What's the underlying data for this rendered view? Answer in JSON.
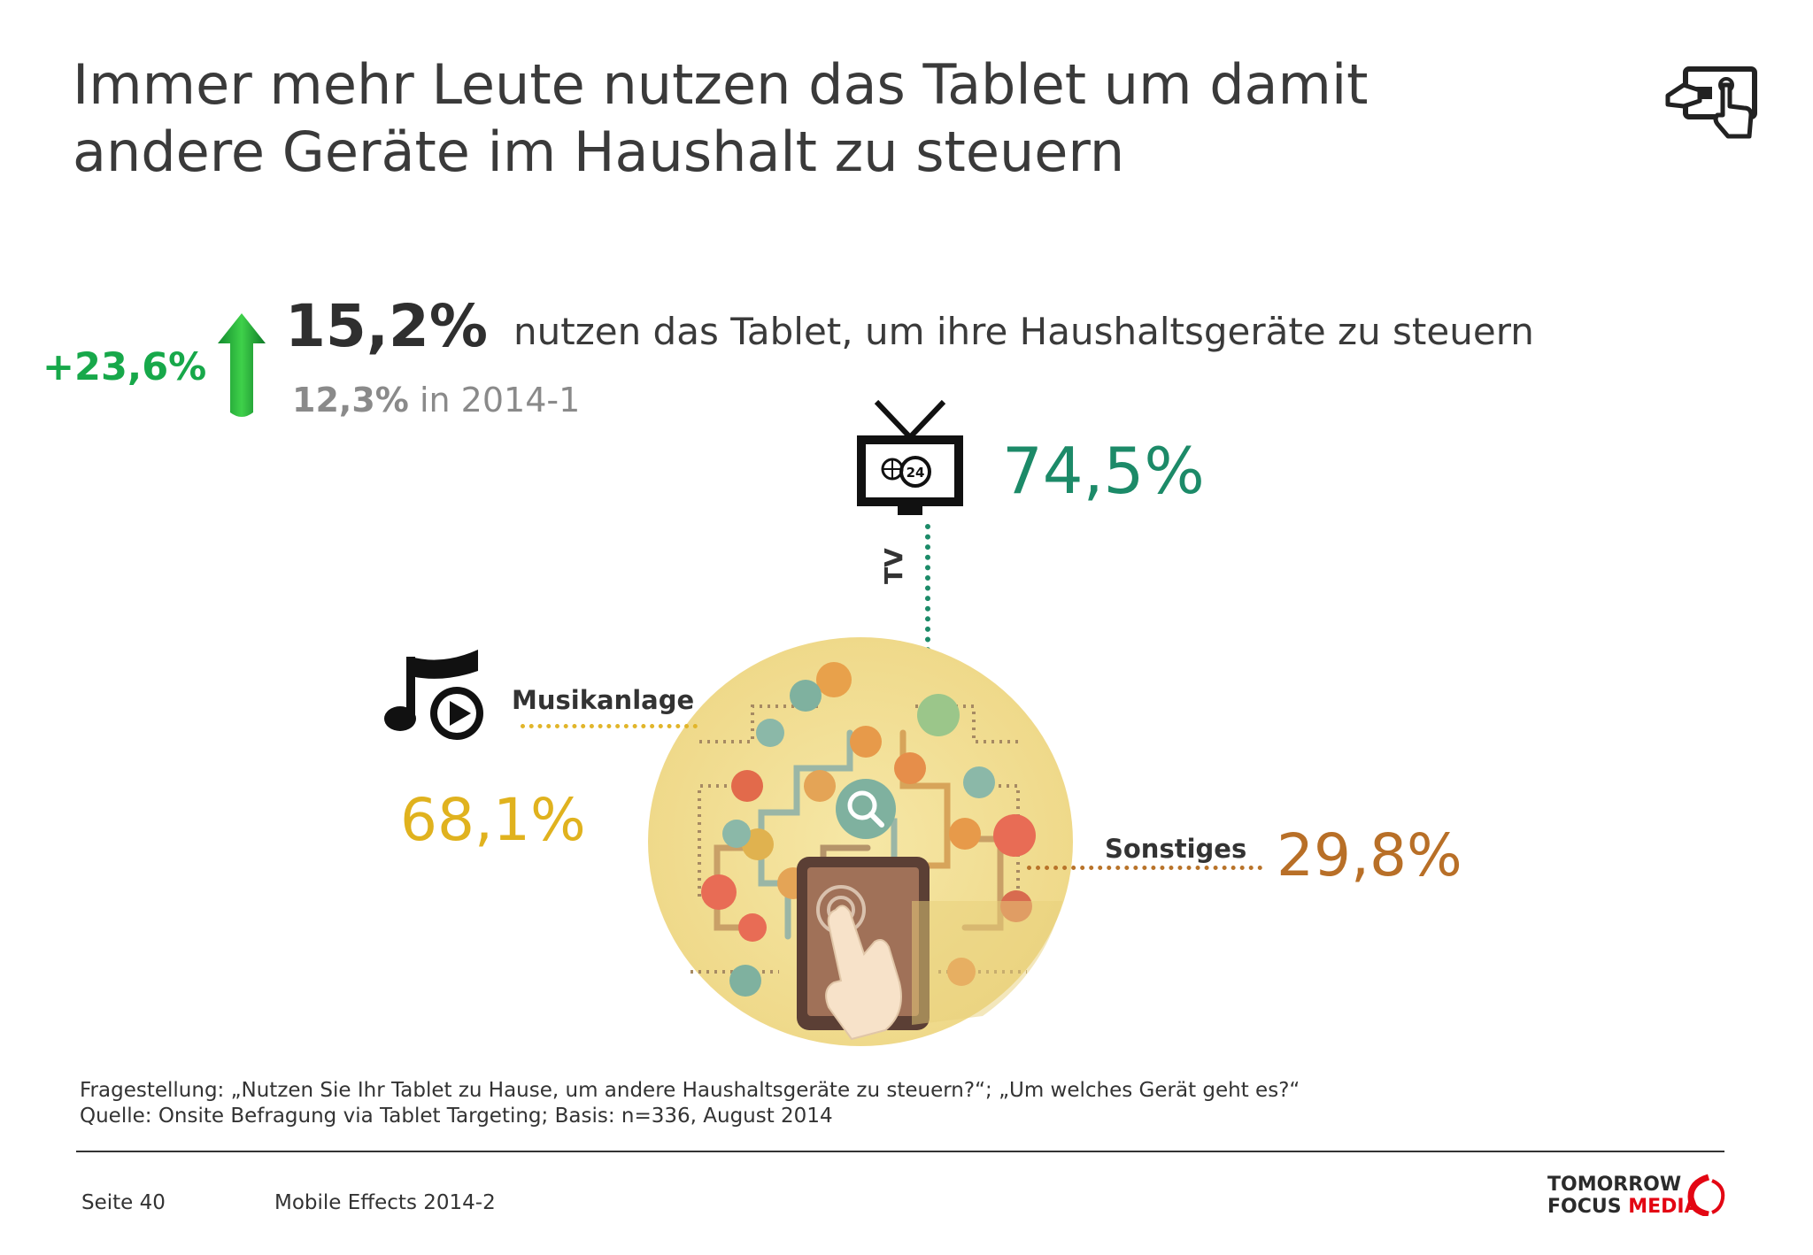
{
  "title": {
    "line1": "Immer mehr Leute nutzen das Tablet um damit",
    "line2": "andere Geräte im Haushalt zu steuern"
  },
  "headline": {
    "growth": "+23,6%",
    "value": "15,2%",
    "text": "nutzen das Tablet, um ihre Haushaltsgeräte zu steuern",
    "previous_value": "12,3%",
    "previous_label": "in 2014-1"
  },
  "devices": {
    "tv": {
      "label": "TV",
      "percent": "74,5%",
      "tv_badge": "24"
    },
    "music": {
      "label": "Musikanlage",
      "percent": "68,1%"
    },
    "other": {
      "label": "Sonstiges",
      "percent": "29,8%"
    }
  },
  "footnote": {
    "question": "Fragestellung: „Nutzen Sie Ihr Tablet zu Hause, um andere Haushaltsgeräte zu steuern?“; „Um welches Gerät geht es?“",
    "source": "Quelle: Onsite Befragung via Tablet Targeting; Basis: n=336, August 2014"
  },
  "footer": {
    "page": "Seite 40",
    "report": "Mobile Effects 2014-2",
    "logo_line1": "TOMORROW",
    "logo_line2a": "FOCUS ",
    "logo_line2b": "MEDIA"
  },
  "colors": {
    "growth_green": "#17a84a",
    "tv_green": "#1c8a68",
    "music_yellow": "#e0b21e",
    "other_orange": "#b86f27",
    "logo_red": "#e30613"
  },
  "icons": [
    "tablet-touch-icon",
    "growth-arrow-icon",
    "tv-icon",
    "music-note-play-icon",
    "smart-home-circle-illustration"
  ]
}
